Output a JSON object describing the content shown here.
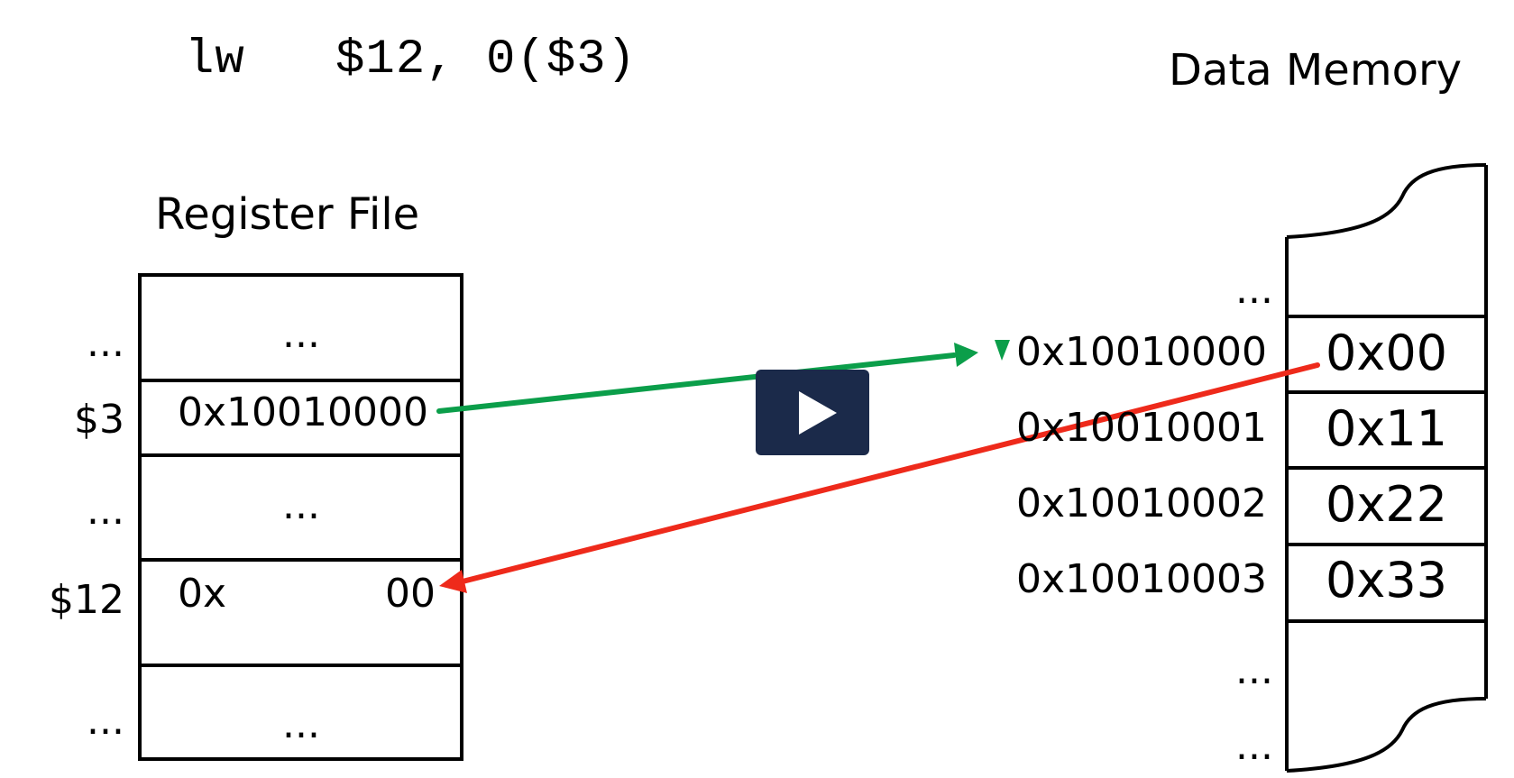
{
  "instruction": {
    "opcode": "lw",
    "operands": "$12, 0($3)"
  },
  "register_file": {
    "title": "Register File",
    "rows": [
      {
        "label": "...",
        "value": "..."
      },
      {
        "label": "$3",
        "value": "0x10010000"
      },
      {
        "label": "...",
        "value": "..."
      },
      {
        "label": "$12",
        "value_prefix": "0x",
        "value_suffix": "00"
      },
      {
        "label": "...",
        "value": "..."
      }
    ]
  },
  "data_memory": {
    "title": "Data Memory",
    "top_ellipsis": "...",
    "cells": [
      {
        "address": "0x10010000",
        "value": "0x00"
      },
      {
        "address": "0x10010001",
        "value": "0x11"
      },
      {
        "address": "0x10010002",
        "value": "0x22"
      },
      {
        "address": "0x10010003",
        "value": "0x33"
      }
    ],
    "bottom_ellipsis_1": "...",
    "bottom_ellipsis_2": "..."
  },
  "arrows": {
    "address_color": "#0b9e4a",
    "data_color": "#ee2a1b"
  }
}
